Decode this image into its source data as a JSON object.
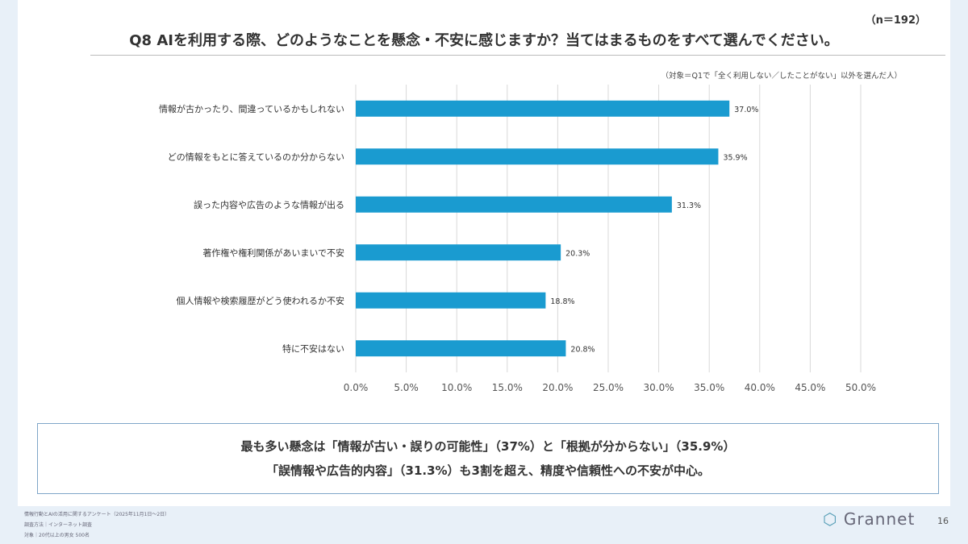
{
  "header": {
    "n_label": "（n＝192）",
    "title": "Q8 AIを利用する際、どのようなことを懸念・不安に感じますか？当てはまるものをすべて選んでください。",
    "note": "（対象＝Q1で「全く利用しない／したことがない」以外を選んだ人）"
  },
  "chart_data": {
    "type": "bar",
    "orientation": "horizontal",
    "categories": [
      "情報が古かったり、間違っているかもしれない",
      "どの情報をもとに答えているのか分からない",
      "誤った内容や広告のような情報が出る",
      "著作権や権利関係があいまいで不安",
      "個人情報や検索履歴がどう使われるか不安",
      "特に不安はない"
    ],
    "values": [
      37.0,
      35.9,
      31.3,
      20.3,
      18.8,
      20.8
    ],
    "data_labels": [
      "37.0%",
      "35.9%",
      "31.3%",
      "20.3%",
      "18.8%",
      "20.8%"
    ],
    "xlim": [
      0,
      50
    ],
    "xticks": [
      "0.0%",
      "5.0%",
      "10.0%",
      "15.0%",
      "20.0%",
      "25.0%",
      "30.0%",
      "35.0%",
      "40.0%",
      "45.0%",
      "50.0%"
    ],
    "grid": true,
    "bar_color": "#1a9bd0"
  },
  "summary": {
    "line1": "最も多い懸念は「情報が古い・誤りの可能性」（37%）と「根拠が分からない」（35.9%）",
    "line2": "「誤情報や広告的内容」（31.3%）も3割を超え、精度や信頼性への不安が中心。"
  },
  "footer": {
    "line1": "情報行動とAIの活用に関するアンケート（2025年11月1日～2日）",
    "line2": "調査方法｜インターネット調査",
    "line3": "対象｜20代以上の男女 500名",
    "logo": "Grannet",
    "page": "16"
  }
}
